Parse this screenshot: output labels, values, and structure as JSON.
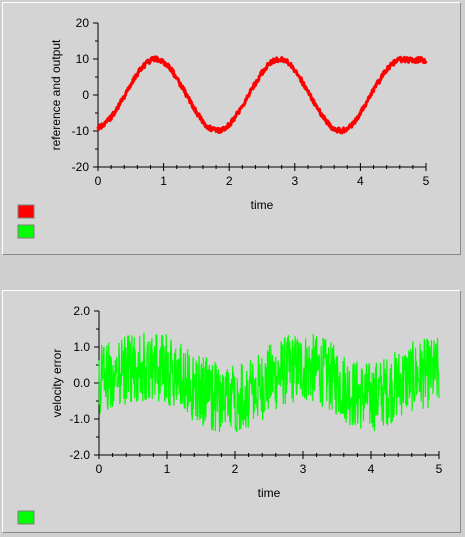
{
  "colors": {
    "panel_bg": "#d4d4d4",
    "series_red": "#ff0000",
    "series_green": "#00ff00"
  },
  "chart_data": [
    {
      "type": "line",
      "xlabel": "time",
      "ylabel": "reference and output",
      "xlim": [
        0,
        5
      ],
      "ylim": [
        -20,
        20
      ],
      "x_ticks": [
        "0",
        "1",
        "2",
        "3",
        "4",
        "5"
      ],
      "y_ticks": [
        "20",
        "10",
        "0",
        "-10",
        "-20"
      ],
      "grid": false,
      "legend_placement": "bottom-left",
      "series": [
        {
          "color": "#ff0000",
          "description_samples": "sinusoid, amplitude 10, period 2, noise ~0.5",
          "x": [
            0,
            0.1,
            0.2,
            0.3,
            0.4,
            0.5,
            0.6,
            0.7,
            0.8,
            0.9,
            1.0,
            1.1,
            1.2,
            1.3,
            1.4,
            1.5,
            1.6,
            1.7,
            1.8,
            1.9,
            2.0,
            2.1,
            2.2,
            2.3,
            2.4,
            2.5,
            2.6,
            2.7,
            2.8,
            2.9,
            3.0,
            3.1,
            3.2,
            3.3,
            3.4,
            3.5,
            3.6,
            3.7,
            3.8,
            3.9,
            4.0,
            4.1,
            4.2,
            4.3,
            4.4,
            4.5,
            4.6,
            4.7,
            4.8,
            4.9,
            5.0
          ],
          "y": [
            -9.0,
            -8.1,
            -6.2,
            -3.4,
            -0.3,
            2.8,
            5.9,
            8.2,
            9.7,
            10.0,
            9.2,
            7.4,
            4.7,
            1.6,
            -1.6,
            -4.7,
            -7.4,
            -9.2,
            -10.0,
            -9.7,
            -8.2,
            -5.9,
            -3.0,
            0.2,
            3.4,
            6.2,
            8.4,
            9.8,
            9.9,
            9.0,
            6.9,
            4.1,
            0.9,
            -2.3,
            -5.3,
            -7.8,
            -9.5,
            -10.0,
            -9.4,
            -7.7,
            -5.0,
            -1.9,
            1.3,
            4.4,
            7.0,
            8.9,
            9.9,
            9.8,
            9.6,
            9.8,
            9.5
          ]
        },
        {
          "color": "#00ff00",
          "x": [],
          "y": []
        }
      ]
    },
    {
      "type": "line",
      "xlabel": "time",
      "ylabel": "velocity error",
      "xlim": [
        0,
        5
      ],
      "ylim": [
        -2.0,
        2.0
      ],
      "x_ticks": [
        "0",
        "1",
        "2",
        "3",
        "4",
        "5"
      ],
      "y_ticks": [
        "2.0",
        "1.0",
        "0.0",
        "-1.0",
        "-2.0"
      ],
      "grid": false,
      "legend_placement": "bottom-left",
      "series": [
        {
          "color": "#00ff00",
          "center_x": [
            0,
            0.25,
            0.5,
            0.75,
            1.0,
            1.25,
            1.5,
            1.75,
            2.0,
            2.25,
            2.5,
            2.75,
            3.0,
            3.25,
            3.5,
            3.75,
            4.0,
            4.25,
            4.5,
            4.75,
            5.0
          ],
          "center_y": [
            0.05,
            0.25,
            0.45,
            0.5,
            0.4,
            0.1,
            -0.2,
            -0.4,
            -0.45,
            -0.3,
            0.1,
            0.35,
            0.45,
            0.35,
            0.05,
            -0.3,
            -0.4,
            -0.2,
            0.1,
            0.25,
            0.3
          ],
          "noise_band": 1.1
        }
      ]
    }
  ]
}
